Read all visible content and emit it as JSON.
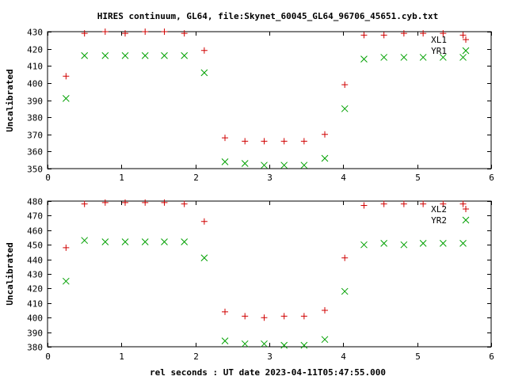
{
  "page": {
    "title": "HIRES continuum, GL64, file:Skynet_60045_GL64_96706_45651.cyb.txt",
    "xlabel": "rel seconds : UT date 2023-04-11T05:47:55.000"
  },
  "chart_data": [
    {
      "type": "scatter",
      "ylabel": "Uncalibrated",
      "xlim": [
        0,
        6
      ],
      "ylim": [
        350,
        430
      ],
      "xticks": [
        0,
        1,
        2,
        3,
        4,
        5,
        6
      ],
      "yticks": [
        350,
        360,
        370,
        380,
        390,
        400,
        410,
        420,
        430
      ],
      "legend_position": "top-right",
      "series": [
        {
          "name": "XL1",
          "marker": "plus",
          "color": "#d00000",
          "x": [
            0.25,
            0.5,
            0.78,
            1.05,
            1.32,
            1.58,
            1.85,
            2.12,
            2.4,
            2.67,
            2.93,
            3.2,
            3.47,
            3.75,
            4.02,
            4.28,
            4.55,
            4.82,
            5.08,
            5.35,
            5.62
          ],
          "y": [
            404,
            429,
            430,
            429,
            430,
            430,
            429,
            419,
            368,
            366,
            366,
            366,
            366,
            370,
            399,
            428,
            428,
            429,
            429,
            429,
            428
          ]
        },
        {
          "name": "YR1",
          "marker": "cross",
          "color": "#00a000",
          "x": [
            0.25,
            0.5,
            0.78,
            1.05,
            1.32,
            1.58,
            1.85,
            2.12,
            2.4,
            2.67,
            2.93,
            3.2,
            3.47,
            3.75,
            4.02,
            4.28,
            4.55,
            4.82,
            5.08,
            5.35,
            5.62
          ],
          "y": [
            391,
            416,
            416,
            416,
            416,
            416,
            416,
            406,
            354,
            353,
            352,
            352,
            352,
            356,
            385,
            414,
            415,
            415,
            415,
            415,
            415
          ]
        }
      ]
    },
    {
      "type": "scatter",
      "ylabel": "Uncalibrated",
      "xlim": [
        0,
        6
      ],
      "ylim": [
        380,
        480
      ],
      "xticks": [
        0,
        1,
        2,
        3,
        4,
        5,
        6
      ],
      "yticks": [
        380,
        390,
        400,
        410,
        420,
        430,
        440,
        450,
        460,
        470,
        480
      ],
      "legend_position": "top-right",
      "series": [
        {
          "name": "XL2",
          "marker": "plus",
          "color": "#d00000",
          "x": [
            0.25,
            0.5,
            0.78,
            1.05,
            1.32,
            1.58,
            1.85,
            2.12,
            2.4,
            2.67,
            2.93,
            3.2,
            3.47,
            3.75,
            4.02,
            4.28,
            4.55,
            4.82,
            5.08,
            5.35,
            5.62
          ],
          "y": [
            448,
            478,
            479,
            479,
            479,
            479,
            478,
            466,
            404,
            401,
            400,
            401,
            401,
            405,
            441,
            477,
            478,
            478,
            478,
            478,
            478
          ]
        },
        {
          "name": "YR2",
          "marker": "cross",
          "color": "#00a000",
          "x": [
            0.25,
            0.5,
            0.78,
            1.05,
            1.32,
            1.58,
            1.85,
            2.12,
            2.4,
            2.67,
            2.93,
            3.2,
            3.47,
            3.75,
            4.02,
            4.28,
            4.55,
            4.82,
            5.08,
            5.35,
            5.62
          ],
          "y": [
            425,
            453,
            452,
            452,
            452,
            452,
            452,
            441,
            384,
            382,
            382,
            381,
            381,
            385,
            418,
            450,
            451,
            450,
            451,
            451,
            451
          ]
        }
      ]
    }
  ]
}
